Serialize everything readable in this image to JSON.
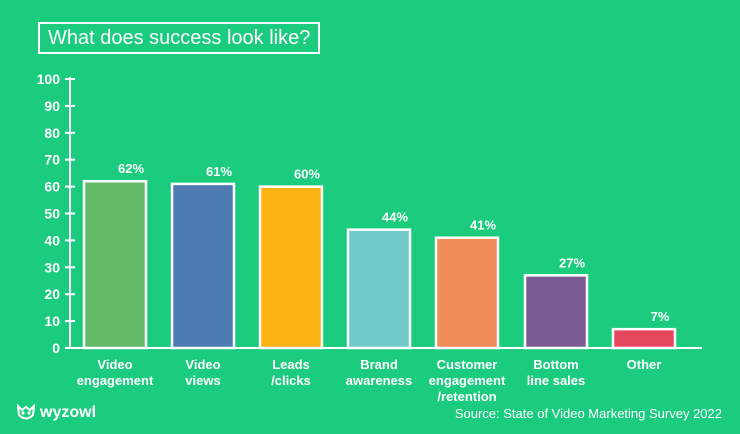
{
  "title": "What does success look like?",
  "brand": "wyzowl",
  "source": "Source: State of Video Marketing Survey 2022",
  "chart_data": {
    "type": "bar",
    "title": "What does success look like?",
    "xlabel": "",
    "ylabel": "",
    "ylim": [
      0,
      100
    ],
    "yticks": [
      0,
      10,
      20,
      30,
      40,
      50,
      60,
      70,
      80,
      90,
      100
    ],
    "grid": false,
    "categories": [
      [
        "Video",
        "engagement"
      ],
      [
        "Video",
        "views"
      ],
      [
        "Leads",
        "/clicks"
      ],
      [
        "Brand",
        "awareness"
      ],
      [
        "Customer",
        "engagement",
        "/retention"
      ],
      [
        "Bottom",
        "line sales"
      ],
      [
        "Other"
      ]
    ],
    "values": [
      62,
      61,
      60,
      44,
      41,
      27,
      7
    ],
    "value_labels": [
      "62%",
      "61%",
      "60%",
      "44%",
      "41%",
      "27%",
      "7%"
    ],
    "colors": [
      "#64bb6a",
      "#4f7bb3",
      "#fbb414",
      "#6fcac8",
      "#f08c57",
      "#7b5b92",
      "#e5485d"
    ]
  }
}
